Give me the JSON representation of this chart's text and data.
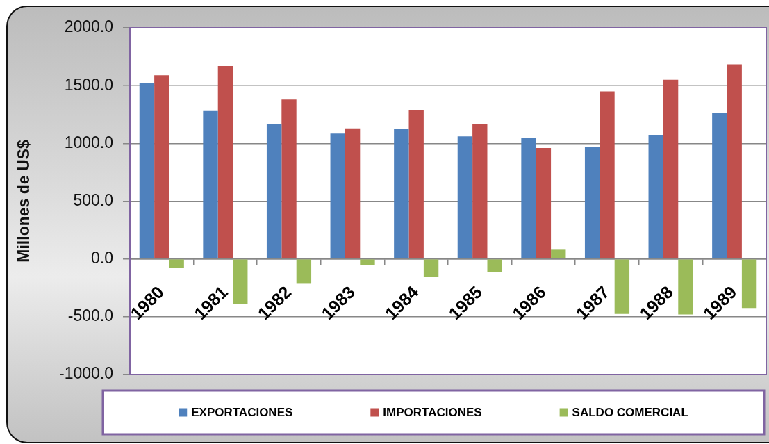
{
  "chart_data": {
    "type": "bar",
    "ylabel": "Millones de US$",
    "categories": [
      "1980",
      "1981",
      "1982",
      "1983",
      "1984",
      "1985",
      "1986",
      "1987",
      "1988",
      "1989"
    ],
    "series": [
      {
        "name": "EXPORTACIONES",
        "color": "#4f81bd",
        "values": [
          1520,
          1280,
          1170,
          1085,
          1125,
          1060,
          1045,
          970,
          1070,
          1265
        ]
      },
      {
        "name": "IMPORTACIONES",
        "color": "#c0504d",
        "values": [
          1590,
          1670,
          1380,
          1130,
          1285,
          1170,
          960,
          1450,
          1550,
          1685
        ]
      },
      {
        "name": "SALDO COMERCIAL",
        "color": "#9bbb59",
        "values": [
          -75,
          -390,
          -215,
          -50,
          -155,
          -115,
          80,
          -475,
          -480,
          -425
        ]
      }
    ],
    "ylim": [
      -1000,
      2000
    ],
    "yticks": [
      {
        "value": -1000,
        "label": "-1000.0"
      },
      {
        "value": -500,
        "label": "-500.0"
      },
      {
        "value": 0,
        "label": "0.0"
      },
      {
        "value": 500,
        "label": "500.0"
      },
      {
        "value": 1000,
        "label": "1000.0"
      },
      {
        "value": 1500,
        "label": "1500.0"
      },
      {
        "value": 2000,
        "label": "2000.0"
      }
    ],
    "grid": "y",
    "legend": "bottom"
  }
}
